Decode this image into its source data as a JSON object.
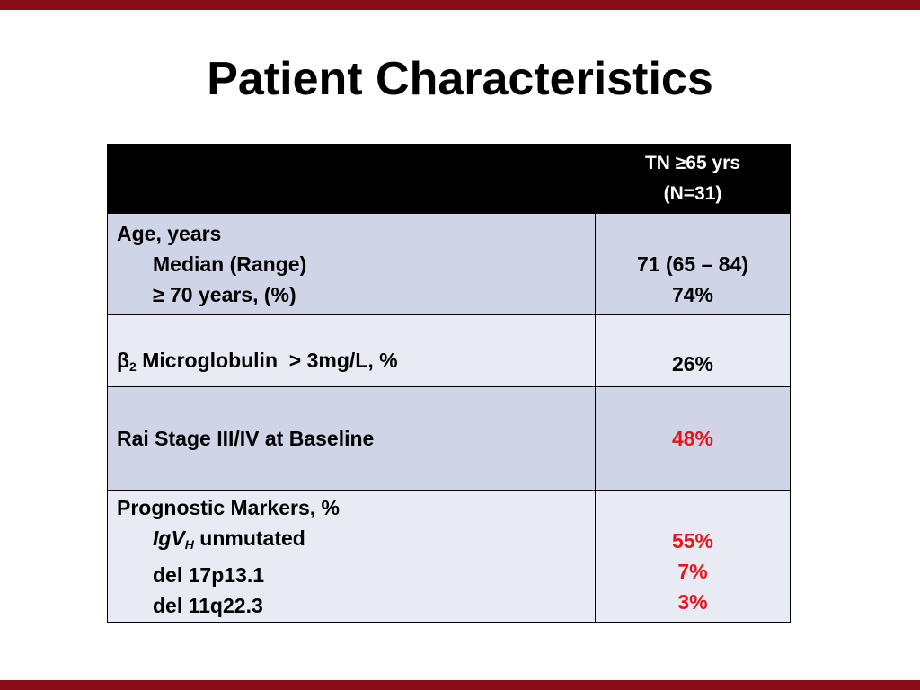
{
  "theme": {
    "accent": "#8b0d1a",
    "header_bg": "#000000",
    "row_odd": "#cfd4e6",
    "row_even": "#e8ebf4",
    "highlight": "#e8141b"
  },
  "slide": {
    "title": "Patient Characteristics"
  },
  "table": {
    "header": {
      "col1": "",
      "col2_line1": "TN ≥65 yrs",
      "col2_line2": "(N=31)"
    },
    "age": {
      "label": "Age, years",
      "median_label": "Median (Range)",
      "over70_label": "≥ 70 years, (%)",
      "median_value": "71 (65 – 84)",
      "over70_value": "74%"
    },
    "b2m": {
      "label_prefix": "β",
      "label_sub": "2",
      "label_rest": " Microglobulin  > 3mg/L, %",
      "value": "26%"
    },
    "rai": {
      "label": "Rai Stage III/IV at Baseline",
      "value": "48%"
    },
    "prognostic": {
      "label": "Prognostic Markers, %",
      "igvh_main": "IgV",
      "igvh_sub": "H",
      "igvh_rest": " unmutated",
      "del17_label": "del 17p13.1",
      "del11_label": "del 11q22.3",
      "igvh_value": "55%",
      "del17_value": "7%",
      "del11_value": "3%"
    }
  }
}
